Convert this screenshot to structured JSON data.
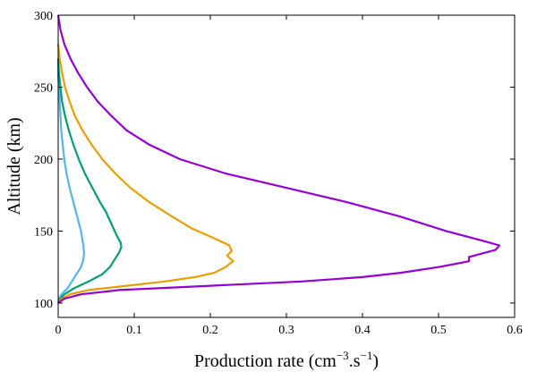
{
  "chart_data": {
    "type": "line",
    "title": "",
    "xlabel": {
      "text": "Production rate (cm",
      "sup1": "−3",
      "mid": ".s",
      "sup2": "−1",
      "end": ")"
    },
    "ylabel": "Altitude (km)",
    "xlim": [
      0,
      0.6
    ],
    "ylim": [
      90,
      300
    ],
    "xticks": [
      0,
      0.1,
      0.2,
      0.3,
      0.4,
      0.5,
      0.6
    ],
    "xtick_labels": [
      "0",
      "0.1",
      "0.2",
      "0.3",
      "0.4",
      "0.5",
      "0.6"
    ],
    "yticks": [
      100,
      150,
      200,
      250,
      300
    ],
    "ytick_labels": [
      "100",
      "150",
      "200",
      "250",
      "300"
    ],
    "grid": false,
    "legend": "none",
    "series": [
      {
        "color": "#56b4e9",
        "points": [
          [
            0,
            100
          ],
          [
            0.002,
            104
          ],
          [
            0.006,
            107
          ],
          [
            0.012,
            110
          ],
          [
            0.018,
            115
          ],
          [
            0.024,
            120
          ],
          [
            0.03,
            125
          ],
          [
            0.033,
            130
          ],
          [
            0.034,
            135
          ],
          [
            0.033,
            140
          ],
          [
            0.03,
            150
          ],
          [
            0.025,
            160
          ],
          [
            0.02,
            170
          ],
          [
            0.015,
            180
          ],
          [
            0.011,
            190
          ],
          [
            0.008,
            200
          ],
          [
            0.006,
            210
          ],
          [
            0.004,
            220
          ],
          [
            0.003,
            230
          ],
          [
            0.002,
            240
          ],
          [
            0.001,
            250
          ],
          [
            0,
            260
          ],
          [
            0,
            270
          ]
        ]
      },
      {
        "color": "#009e73",
        "points": [
          [
            0,
            100
          ],
          [
            0.003,
            103
          ],
          [
            0.008,
            106
          ],
          [
            0.02,
            110
          ],
          [
            0.04,
            115
          ],
          [
            0.058,
            120
          ],
          [
            0.068,
            125
          ],
          [
            0.074,
            130
          ],
          [
            0.08,
            135
          ],
          [
            0.083,
            139
          ],
          [
            0.082,
            142
          ],
          [
            0.077,
            147
          ],
          [
            0.07,
            155
          ],
          [
            0.063,
            163
          ],
          [
            0.055,
            170
          ],
          [
            0.045,
            180
          ],
          [
            0.035,
            190
          ],
          [
            0.027,
            200
          ],
          [
            0.02,
            210
          ],
          [
            0.014,
            220
          ],
          [
            0.009,
            230
          ],
          [
            0.005,
            240
          ],
          [
            0.003,
            250
          ],
          [
            0.001,
            260
          ],
          [
            0,
            270
          ]
        ]
      },
      {
        "color": "#e69f00",
        "points": [
          [
            0,
            100
          ],
          [
            0.005,
            103
          ],
          [
            0.015,
            106
          ],
          [
            0.04,
            109
          ],
          [
            0.09,
            112
          ],
          [
            0.14,
            115
          ],
          [
            0.18,
            118
          ],
          [
            0.205,
            121
          ],
          [
            0.22,
            125
          ],
          [
            0.23,
            129
          ],
          [
            0.222,
            133
          ],
          [
            0.228,
            136
          ],
          [
            0.225,
            140
          ],
          [
            0.205,
            145
          ],
          [
            0.175,
            152
          ],
          [
            0.15,
            160
          ],
          [
            0.12,
            170
          ],
          [
            0.095,
            180
          ],
          [
            0.075,
            190
          ],
          [
            0.058,
            200
          ],
          [
            0.044,
            210
          ],
          [
            0.032,
            220
          ],
          [
            0.022,
            230
          ],
          [
            0.015,
            240
          ],
          [
            0.009,
            250
          ],
          [
            0.005,
            260
          ],
          [
            0.002,
            270
          ],
          [
            0,
            280
          ]
        ]
      },
      {
        "color": "#9400d3",
        "points": [
          [
            0,
            100
          ],
          [
            0.008,
            103
          ],
          [
            0.03,
            106
          ],
          [
            0.08,
            109
          ],
          [
            0.2,
            112
          ],
          [
            0.32,
            115
          ],
          [
            0.4,
            118
          ],
          [
            0.45,
            121
          ],
          [
            0.5,
            125
          ],
          [
            0.54,
            129
          ],
          [
            0.54,
            132
          ],
          [
            0.575,
            137
          ],
          [
            0.58,
            140
          ],
          [
            0.56,
            143
          ],
          [
            0.51,
            150
          ],
          [
            0.45,
            160
          ],
          [
            0.38,
            170
          ],
          [
            0.3,
            180
          ],
          [
            0.22,
            190
          ],
          [
            0.16,
            200
          ],
          [
            0.12,
            210
          ],
          [
            0.09,
            220
          ],
          [
            0.07,
            230
          ],
          [
            0.052,
            240
          ],
          [
            0.038,
            250
          ],
          [
            0.026,
            260
          ],
          [
            0.016,
            270
          ],
          [
            0.008,
            280
          ],
          [
            0.003,
            290
          ],
          [
            0,
            300
          ]
        ]
      }
    ]
  }
}
